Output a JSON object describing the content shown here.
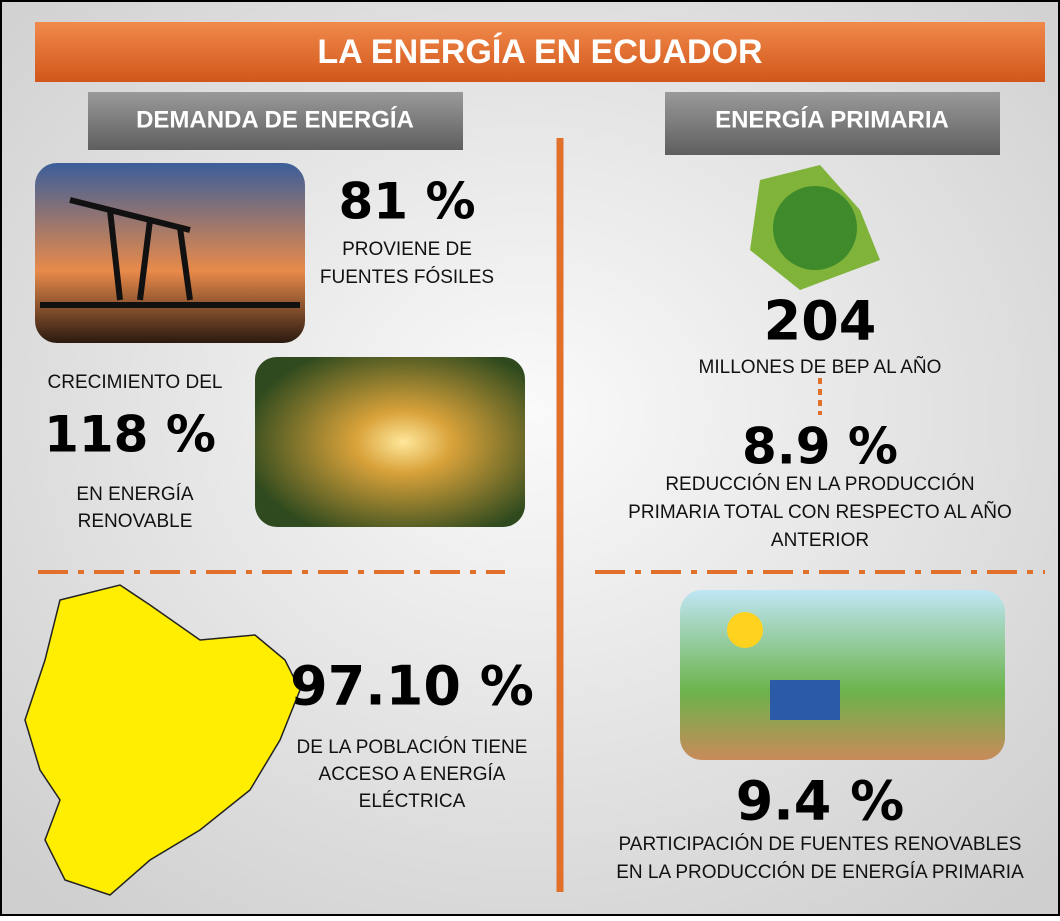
{
  "header": {
    "title": "LA ENERGÍA EN ECUADOR"
  },
  "left": {
    "heading": "DEMANDA DE ENERGÍA",
    "fossil": {
      "value": "81 %",
      "lines": [
        "PROVIENE DE",
        "FUENTES FÓSILES"
      ]
    },
    "renewable": {
      "intro": "CRECIMIENTO DEL",
      "value": "118 %",
      "lines": [
        "EN ENERGÍA",
        "RENOVABLE"
      ]
    },
    "access": {
      "value": "97.10 %",
      "lines": [
        "DE LA POBLACIÓN TIENE",
        "ACCESO A ENERGÍA",
        "ELÉCTRICA"
      ]
    }
  },
  "right": {
    "heading": "ENERGÍA PRIMARIA",
    "production": {
      "value": "204",
      "lines": [
        "MILLONES DE BEP AL AÑO"
      ]
    },
    "reduction": {
      "value": "8.9 %",
      "lines": [
        "REDUCCIÓN EN LA PRODUCCIÓN",
        "PRIMARIA TOTAL CON RESPECTO AL AÑO",
        "ANTERIOR"
      ]
    },
    "share": {
      "value": "9.4 %",
      "lines": [
        "PARTICIPACIÓN DE FUENTES RENOVABLES",
        "EN LA PRODUCCIÓN DE ENERGÍA PRIMARIA"
      ]
    }
  }
}
